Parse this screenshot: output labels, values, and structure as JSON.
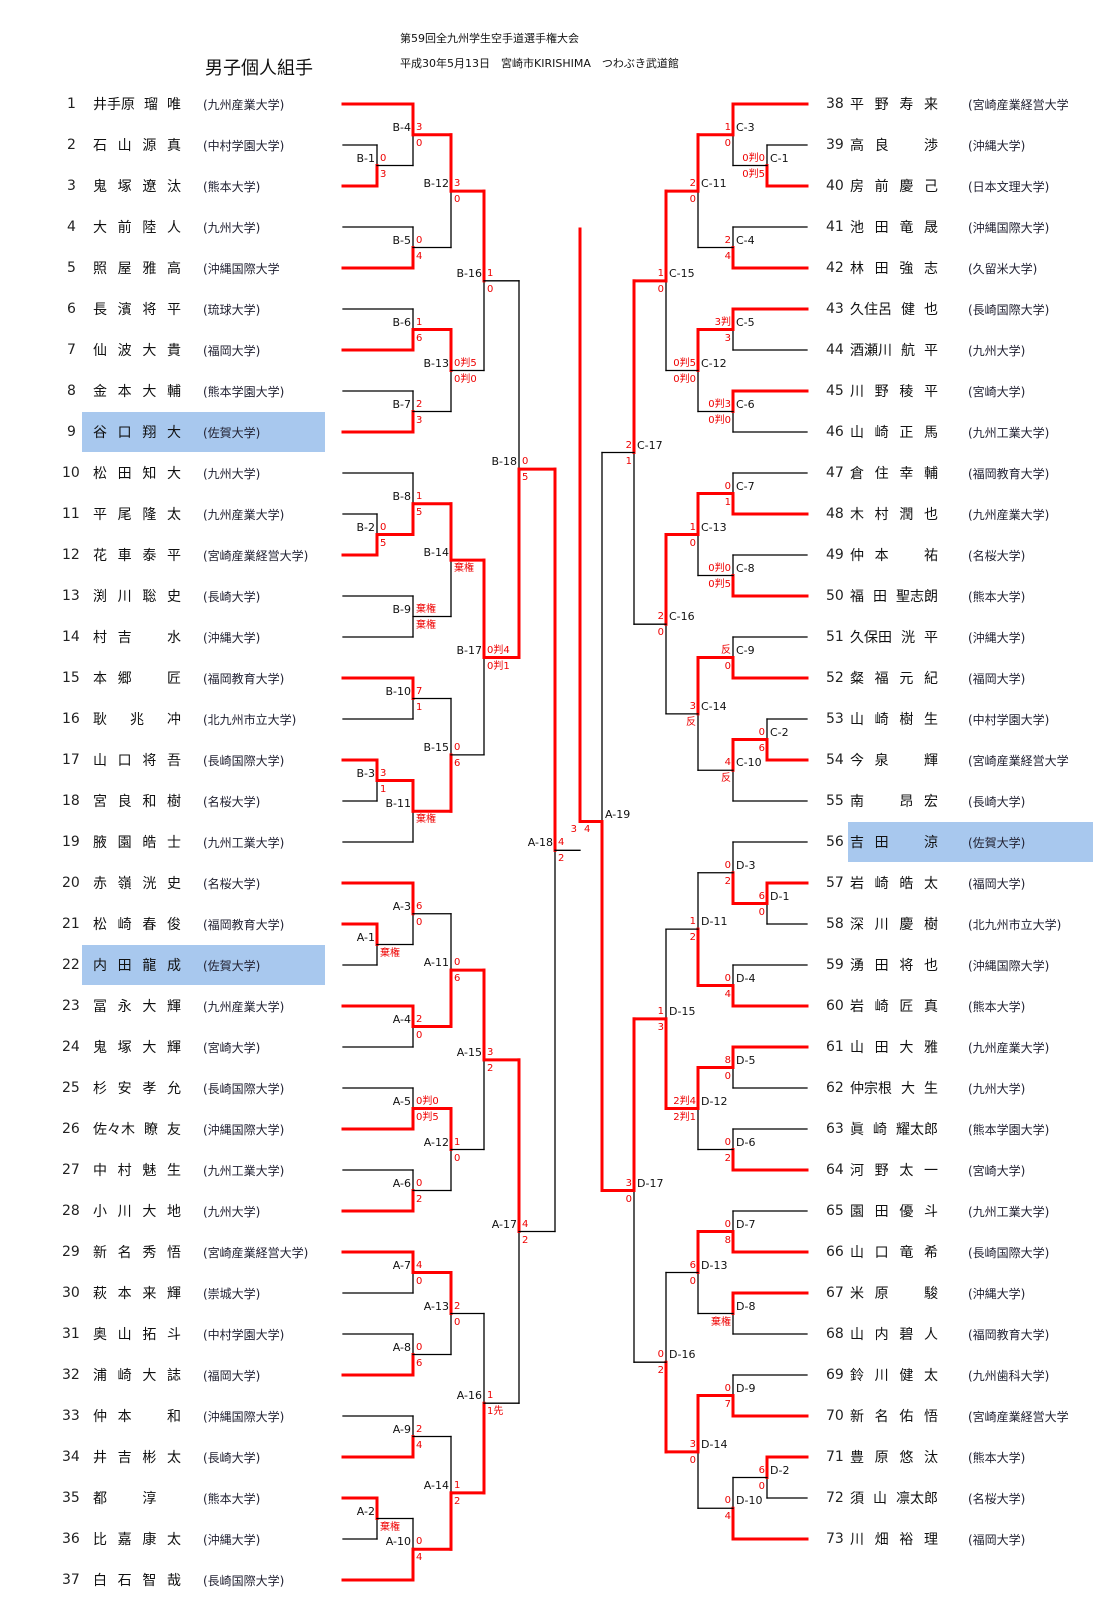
{
  "header": {
    "title": "男子個人組手",
    "event": "第59回全九州学生空手道選手権大会",
    "date_venue": "平成30年5月13日　宮崎市KIRISHIMA　つわぶき武道館"
  },
  "colors": {
    "winner": "#ff0000",
    "line": "#000000",
    "highlight": "#a8c8ee"
  },
  "left_players": [
    {
      "no": "1",
      "name": "井手原 瑠 唯",
      "univ": "(九州産業大学)"
    },
    {
      "no": "2",
      "name": "石 山 源 真",
      "univ": "(中村学園大学)"
    },
    {
      "no": "3",
      "name": "鬼 塚 遼 汰",
      "univ": "(熊本大学)"
    },
    {
      "no": "4",
      "name": "大 前 陸 人",
      "univ": "(九州大学)"
    },
    {
      "no": "5",
      "name": "照 屋 雅 高",
      "univ": "(沖縄国際大学"
    },
    {
      "no": "6",
      "name": "長 濱 将 平",
      "univ": "(琉球大学)"
    },
    {
      "no": "7",
      "name": "仙 波 大 貴",
      "univ": "(福岡大学)"
    },
    {
      "no": "8",
      "name": "金 本 大 輔",
      "univ": "(熊本学園大学)"
    },
    {
      "no": "9",
      "name": "谷 口 翔 大",
      "univ": "(佐賀大学)",
      "highlight": true
    },
    {
      "no": "10",
      "name": "松 田 知 大",
      "univ": "(九州大学)"
    },
    {
      "no": "11",
      "name": "平 尾 隆 太",
      "univ": "(九州産業大学)"
    },
    {
      "no": "12",
      "name": "花 車 泰 平",
      "univ": "(宮崎産業経営大学)"
    },
    {
      "no": "13",
      "name": "渕 川 聡 史",
      "univ": "(長崎大学)"
    },
    {
      "no": "14",
      "name": "村 吉 　 水",
      "univ": "(沖縄大学)"
    },
    {
      "no": "15",
      "name": "本 郷 　 匠",
      "univ": "(福岡教育大学)"
    },
    {
      "no": "16",
      "name": "耿 兆 冲",
      "univ": "(北九州市立大学)"
    },
    {
      "no": "17",
      "name": "山 口 将 吾",
      "univ": "(長崎国際大学)"
    },
    {
      "no": "18",
      "name": "宮 良 和 樹",
      "univ": "(名桜大学)"
    },
    {
      "no": "19",
      "name": "腋 園 皓 士",
      "univ": "(九州工業大学)"
    },
    {
      "no": "20",
      "name": "赤 嶺 洸 史",
      "univ": "(名桜大学)"
    },
    {
      "no": "21",
      "name": "松 崎 春 俊",
      "univ": "(福岡教育大学)"
    },
    {
      "no": "22",
      "name": "内 田 龍 成",
      "univ": "(佐賀大学)",
      "highlight": true
    },
    {
      "no": "23",
      "name": "冨 永 大 輝",
      "univ": "(九州産業大学)"
    },
    {
      "no": "24",
      "name": "鬼 塚 大 輝",
      "univ": "(宮崎大学)"
    },
    {
      "no": "25",
      "name": "杉 安 孝 允",
      "univ": "(長崎国際大学)"
    },
    {
      "no": "26",
      "name": "佐々木 瞭 友",
      "univ": "(沖縄国際大学)"
    },
    {
      "no": "27",
      "name": "中 村 魅 生",
      "univ": "(九州工業大学)"
    },
    {
      "no": "28",
      "name": "小 川 大 地",
      "univ": "(九州大学)"
    },
    {
      "no": "29",
      "name": "新 名 秀 悟",
      "univ": "(宮崎産業経営大学)"
    },
    {
      "no": "30",
      "name": "萩 本 来 輝",
      "univ": "(崇城大学)"
    },
    {
      "no": "31",
      "name": "奥 山 拓 斗",
      "univ": "(中村学園大学)"
    },
    {
      "no": "32",
      "name": "浦 崎 大 誌",
      "univ": "(福岡大学)"
    },
    {
      "no": "33",
      "name": "仲 本 　 和",
      "univ": "(沖縄国際大学)"
    },
    {
      "no": "34",
      "name": "井 吉 彬 太",
      "univ": "(長崎大学)"
    },
    {
      "no": "35",
      "name": "都 　 淳 　",
      "univ": "(熊本大学)"
    },
    {
      "no": "36",
      "name": "比 嘉 康 太",
      "univ": "(沖縄大学)"
    },
    {
      "no": "37",
      "name": "白 石 智 哉",
      "univ": "(長崎国際大学)"
    }
  ],
  "right_players": [
    {
      "no": "38",
      "name": "平 野 寿 来",
      "univ": "(宮崎産業経営大学"
    },
    {
      "no": "39",
      "name": "高 良 　 渉",
      "univ": "(沖縄大学)"
    },
    {
      "no": "40",
      "name": "房 前 慶 己",
      "univ": "(日本文理大学)"
    },
    {
      "no": "41",
      "name": "池 田 竜 晟",
      "univ": "(沖縄国際大学)"
    },
    {
      "no": "42",
      "name": "林 田 強 志",
      "univ": "(久留米大学)"
    },
    {
      "no": "43",
      "name": "久住呂 健 也",
      "univ": "(長崎国際大学)"
    },
    {
      "no": "44",
      "name": "酒瀬川 航 平",
      "univ": "(九州大学)"
    },
    {
      "no": "45",
      "name": "川 野 稜 平",
      "univ": "(宮崎大学)"
    },
    {
      "no": "46",
      "name": "山 崎 正 馬",
      "univ": "(九州工業大学)"
    },
    {
      "no": "47",
      "name": "倉 住 幸 輔",
      "univ": "(福岡教育大学)"
    },
    {
      "no": "48",
      "name": "木 村 潤 也",
      "univ": "(九州産業大学)"
    },
    {
      "no": "49",
      "name": "仲 本 　 祐",
      "univ": "(名桜大学)"
    },
    {
      "no": "50",
      "name": "福 田 聖志朗",
      "univ": "(熊本大学)"
    },
    {
      "no": "51",
      "name": "久保田 洸 平",
      "univ": "(沖縄大学)"
    },
    {
      "no": "52",
      "name": "粲 福 元 紀",
      "univ": "(福岡大学)"
    },
    {
      "no": "53",
      "name": "山 崎 樹 生",
      "univ": "(中村学園大学)"
    },
    {
      "no": "54",
      "name": "今 泉 　 輝",
      "univ": "(宮崎産業経営大学"
    },
    {
      "no": "55",
      "name": "南 　 昂 宏",
      "univ": "(長崎大学)"
    },
    {
      "no": "56",
      "name": "吉 田 　 涼",
      "univ": "(佐賀大学)",
      "highlight": true
    },
    {
      "no": "57",
      "name": "岩 崎 皓 太",
      "univ": "(福岡大学)"
    },
    {
      "no": "58",
      "name": "深 川 慶 樹",
      "univ": "(北九州市立大学)"
    },
    {
      "no": "59",
      "name": "湧 田 将 也",
      "univ": "(沖縄国際大学)"
    },
    {
      "no": "60",
      "name": "岩 崎 匠 真",
      "univ": "(熊本大学)"
    },
    {
      "no": "61",
      "name": "山 田 大 雅",
      "univ": "(九州産業大学)"
    },
    {
      "no": "62",
      "name": "仲宗根 大 生",
      "univ": "(九州大学)"
    },
    {
      "no": "63",
      "name": "眞 崎 耀太郎",
      "univ": "(熊本学園大学)"
    },
    {
      "no": "64",
      "name": "河 野 太 一",
      "univ": "(宮崎大学)"
    },
    {
      "no": "65",
      "name": "園 田 優 斗",
      "univ": "(九州工業大学)"
    },
    {
      "no": "66",
      "name": "山 口 竜 希",
      "univ": "(長崎国際大学)"
    },
    {
      "no": "67",
      "name": "米 原 　 駿",
      "univ": "(沖縄大学)"
    },
    {
      "no": "68",
      "name": "山 内 碧 人",
      "univ": "(福岡教育大学)"
    },
    {
      "no": "69",
      "name": "鈴 川 健 太",
      "univ": "(九州歯科大学)"
    },
    {
      "no": "70",
      "name": "新 名 佑 悟",
      "univ": "(宮崎産業経営大学"
    },
    {
      "no": "71",
      "name": "豊 原 悠 汰",
      "univ": "(熊本大学)"
    },
    {
      "no": "72",
      "name": "須 山 凛太郎",
      "univ": "(名桜大学)"
    },
    {
      "no": "73",
      "name": "川 畑 裕 理",
      "univ": "(福岡大学)"
    }
  ],
  "matches": [
    {
      "id": "B-1",
      "t": 2,
      "b": 3,
      "s": [
        "0",
        "3"
      ],
      "w": "b"
    },
    {
      "id": "B-4",
      "t": 1,
      "b": "B-1",
      "s": [
        "3",
        "0"
      ],
      "w": "t"
    },
    {
      "id": "B-5",
      "t": 4,
      "b": 5,
      "s": [
        "0",
        "4"
      ],
      "w": "b"
    },
    {
      "id": "B-12",
      "t": "B-4",
      "b": "B-5",
      "s": [
        "3",
        "0"
      ],
      "w": "t"
    },
    {
      "id": "B-6",
      "t": 6,
      "b": 7,
      "s": [
        "1",
        "6"
      ],
      "w": "b"
    },
    {
      "id": "B-7",
      "t": 8,
      "b": 9,
      "s": [
        "2",
        "3"
      ],
      "w": "b"
    },
    {
      "id": "B-13",
      "t": "B-6",
      "b": "B-7",
      "s": [
        "0判5",
        "0判0"
      ],
      "w": "t"
    },
    {
      "id": "B-16",
      "t": "B-12",
      "b": "B-13",
      "s": [
        "1",
        "0"
      ],
      "w": "t"
    },
    {
      "id": "B-2",
      "t": 11,
      "b": 12,
      "s": [
        "0",
        "5"
      ],
      "w": "b"
    },
    {
      "id": "B-8",
      "t": 10,
      "b": "B-2",
      "s": [
        "1",
        "5"
      ],
      "w": "b"
    },
    {
      "id": "B-9",
      "t": 13,
      "b": 14,
      "s": [
        "棄権",
        "棄権"
      ],
      "w": null
    },
    {
      "id": "B-14",
      "t": "B-8",
      "b": "B-9",
      "s": [
        "",
        "棄権"
      ],
      "w": "t"
    },
    {
      "id": "B-10",
      "t": 15,
      "b": 16,
      "s": [
        "7",
        "1"
      ],
      "w": "t"
    },
    {
      "id": "B-3",
      "t": 17,
      "b": 18,
      "s": [
        "3",
        "1"
      ],
      "w": "t"
    },
    {
      "id": "B-11",
      "t": "B-3",
      "b": 19,
      "s": [
        "",
        "棄権"
      ],
      "w": "t"
    },
    {
      "id": "B-15",
      "t": "B-10",
      "b": "B-11",
      "s": [
        "0",
        "6"
      ],
      "w": "b"
    },
    {
      "id": "B-17",
      "t": "B-14",
      "b": "B-15",
      "s": [
        "0判4",
        "0判1"
      ],
      "w": "t"
    },
    {
      "id": "B-18",
      "t": "B-16",
      "b": "B-17",
      "s": [
        "0",
        "5"
      ],
      "w": "b"
    },
    {
      "id": "A-1",
      "t": 21,
      "b": 22,
      "s": [
        "",
        "棄権"
      ],
      "w": "t"
    },
    {
      "id": "A-3",
      "t": 20,
      "b": "A-1",
      "s": [
        "6",
        "0"
      ],
      "w": "t"
    },
    {
      "id": "A-4",
      "t": 23,
      "b": 24,
      "s": [
        "2",
        "0"
      ],
      "w": "t"
    },
    {
      "id": "A-11",
      "t": "A-3",
      "b": "A-4",
      "s": [
        "0",
        "6"
      ],
      "w": "b"
    },
    {
      "id": "A-5",
      "t": 25,
      "b": 26,
      "s": [
        "0判0",
        "0判5"
      ],
      "w": "b"
    },
    {
      "id": "A-6",
      "t": 27,
      "b": 28,
      "s": [
        "0",
        "2"
      ],
      "w": "b"
    },
    {
      "id": "A-12",
      "t": "A-5",
      "b": "A-6",
      "s": [
        "1",
        "0"
      ],
      "w": "t"
    },
    {
      "id": "A-15",
      "t": "A-11",
      "b": "A-12",
      "s": [
        "3",
        "2"
      ],
      "w": "t"
    },
    {
      "id": "A-7",
      "t": 29,
      "b": 30,
      "s": [
        "4",
        "0"
      ],
      "w": "t"
    },
    {
      "id": "A-8",
      "t": 31,
      "b": 32,
      "s": [
        "0",
        "6"
      ],
      "w": "b"
    },
    {
      "id": "A-13",
      "t": "A-7",
      "b": "A-8",
      "s": [
        "2",
        "0"
      ],
      "w": "t"
    },
    {
      "id": "A-9",
      "t": 33,
      "b": 34,
      "s": [
        "2",
        "4"
      ],
      "w": "b"
    },
    {
      "id": "A-2",
      "t": 35,
      "b": 36,
      "s": [
        "",
        "棄権"
      ],
      "w": "t"
    },
    {
      "id": "A-10",
      "t": "A-2",
      "b": 37,
      "s": [
        "0",
        "4"
      ],
      "w": "b"
    },
    {
      "id": "A-14",
      "t": "A-9",
      "b": "A-10",
      "s": [
        "1",
        "2"
      ],
      "w": "b"
    },
    {
      "id": "A-16",
      "t": "A-13",
      "b": "A-14",
      "s": [
        "1",
        "1先"
      ],
      "w": "b"
    },
    {
      "id": "A-17",
      "t": "A-15",
      "b": "A-16",
      "s": [
        "4",
        "2"
      ],
      "w": "t"
    },
    {
      "id": "A-18",
      "t": "B-18",
      "b": "A-17",
      "s": [
        "4",
        "2"
      ],
      "w": "t"
    },
    {
      "id": "C-1",
      "t": 39,
      "b": 40,
      "s": [
        "0判0",
        "0判5"
      ],
      "w": "b"
    },
    {
      "id": "C-3",
      "t": 38,
      "b": "C-1",
      "s": [
        "1",
        "0"
      ],
      "w": "t"
    },
    {
      "id": "C-4",
      "t": 41,
      "b": 42,
      "s": [
        "2",
        "4"
      ],
      "w": "b"
    },
    {
      "id": "C-11",
      "t": "C-3",
      "b": "C-4",
      "s": [
        "2",
        "0"
      ],
      "w": "t"
    },
    {
      "id": "C-5",
      "t": 43,
      "b": 44,
      "s": [
        "3判",
        "3"
      ],
      "w": "t"
    },
    {
      "id": "C-6",
      "t": 45,
      "b": 46,
      "s": [
        "0判3",
        "0判0"
      ],
      "w": "t"
    },
    {
      "id": "C-12",
      "t": "C-5",
      "b": "C-6",
      "s": [
        "0判5",
        "0判0"
      ],
      "w": "t"
    },
    {
      "id": "C-15",
      "t": "C-11",
      "b": "C-12",
      "s": [
        "1",
        "0"
      ],
      "w": "t"
    },
    {
      "id": "C-7",
      "t": 47,
      "b": 48,
      "s": [
        "0",
        "1"
      ],
      "w": "b"
    },
    {
      "id": "C-8",
      "t": 49,
      "b": 50,
      "s": [
        "0判0",
        "0判5"
      ],
      "w": "b"
    },
    {
      "id": "C-13",
      "t": "C-7",
      "b": "C-8",
      "s": [
        "1",
        "0"
      ],
      "w": "t"
    },
    {
      "id": "C-9",
      "t": 51,
      "b": 52,
      "s": [
        "反",
        "0"
      ],
      "w": "b"
    },
    {
      "id": "C-2",
      "t": 53,
      "b": 54,
      "s": [
        "0",
        "6"
      ],
      "w": "b"
    },
    {
      "id": "C-10",
      "t": "C-2",
      "b": 55,
      "s": [
        "4",
        "反"
      ],
      "w": "t"
    },
    {
      "id": "C-14",
      "t": "C-9",
      "b": "C-10",
      "s": [
        "3",
        "反"
      ],
      "w": "t"
    },
    {
      "id": "C-16",
      "t": "C-13",
      "b": "C-14",
      "s": [
        "2",
        "0"
      ],
      "w": "t"
    },
    {
      "id": "C-17",
      "t": "C-15",
      "b": "C-16",
      "s": [
        "2",
        "1"
      ],
      "w": "t"
    },
    {
      "id": "D-1",
      "t": 57,
      "b": 58,
      "s": [
        "6",
        "0"
      ],
      "w": "t"
    },
    {
      "id": "D-3",
      "t": 56,
      "b": "D-1",
      "s": [
        "0",
        "2"
      ],
      "w": "b"
    },
    {
      "id": "D-4",
      "t": 59,
      "b": 60,
      "s": [
        "0",
        "4"
      ],
      "w": "b"
    },
    {
      "id": "D-11",
      "t": "D-3",
      "b": "D-4",
      "s": [
        "1",
        "2"
      ],
      "w": "b"
    },
    {
      "id": "D-5",
      "t": 61,
      "b": 62,
      "s": [
        "8",
        "0"
      ],
      "w": "t"
    },
    {
      "id": "D-6",
      "t": 63,
      "b": 64,
      "s": [
        "0",
        "2"
      ],
      "w": "b"
    },
    {
      "id": "D-12",
      "t": "D-5",
      "b": "D-6",
      "s": [
        "2判4",
        "2判1"
      ],
      "w": "t"
    },
    {
      "id": "D-15",
      "t": "D-11",
      "b": "D-12",
      "s": [
        "1",
        "3"
      ],
      "w": "b"
    },
    {
      "id": "D-7",
      "t": 65,
      "b": 66,
      "s": [
        "0",
        "8"
      ],
      "w": "b"
    },
    {
      "id": "D-8",
      "t": 67,
      "b": 68,
      "s": [
        "",
        "棄権"
      ],
      "w": "t"
    },
    {
      "id": "D-13",
      "t": "D-7",
      "b": "D-8",
      "s": [
        "6",
        "0"
      ],
      "w": "t"
    },
    {
      "id": "D-9",
      "t": 69,
      "b": 70,
      "s": [
        "0",
        "7"
      ],
      "w": "b"
    },
    {
      "id": "D-2",
      "t": 71,
      "b": 72,
      "s": [
        "6",
        "0"
      ],
      "w": "t"
    },
    {
      "id": "D-10",
      "t": "D-2",
      "b": 73,
      "s": [
        "0",
        "4"
      ],
      "w": "b"
    },
    {
      "id": "D-14",
      "t": "D-9",
      "b": "D-10",
      "s": [
        "3",
        "0"
      ],
      "w": "t"
    },
    {
      "id": "D-16",
      "t": "D-13",
      "b": "D-14",
      "s": [
        "0",
        "2"
      ],
      "w": "b"
    },
    {
      "id": "D-17",
      "t": "D-15",
      "b": "D-16",
      "s": [
        "3",
        "0"
      ],
      "w": "t"
    },
    {
      "id": "A-19",
      "t": "C-17",
      "b": "D-17",
      "s": [
        "",
        ""
      ],
      "w": "b"
    }
  ],
  "final": {
    "left_root": "A-18",
    "right_root": "A-19",
    "scores": [
      "3",
      "4"
    ],
    "winner": "right"
  }
}
